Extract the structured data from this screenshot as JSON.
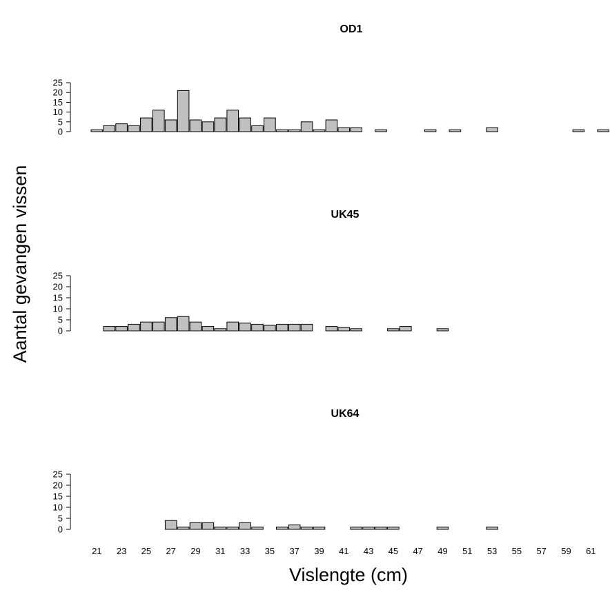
{
  "chart_data": {
    "type": "bar",
    "ylabel": "Aantal gevangen vissen",
    "xlabel": "Vislengte (cm)",
    "ylim": [
      0,
      25
    ],
    "yticks": [
      0,
      5,
      10,
      15,
      20,
      25
    ],
    "x": [
      21,
      22,
      23,
      24,
      25,
      26,
      27,
      28,
      29,
      30,
      31,
      32,
      33,
      34,
      35,
      36,
      37,
      38,
      39,
      40,
      41,
      42,
      43,
      44,
      45,
      46,
      47,
      48,
      49,
      50,
      51,
      52,
      53,
      54,
      55,
      56,
      57,
      58,
      59,
      60,
      61,
      62
    ],
    "xtick_labels": [
      "21",
      "23",
      "25",
      "27",
      "29",
      "31",
      "33",
      "35",
      "37",
      "39",
      "41",
      "43",
      "45",
      "47",
      "49",
      "51",
      "53",
      "55",
      "57",
      "59",
      "61"
    ],
    "bar_color": "#c0c0c0",
    "panels": [
      {
        "title": "OD1",
        "values": [
          1,
          3,
          4,
          3,
          7,
          11,
          6,
          21,
          6,
          5,
          7,
          11,
          7,
          3,
          7,
          1,
          1,
          5,
          1,
          6,
          2,
          2,
          0,
          1,
          0,
          0,
          0,
          1,
          0,
          1,
          0,
          0,
          2,
          0,
          0,
          0,
          0,
          0,
          0,
          1,
          0,
          1
        ]
      },
      {
        "title": "UK45",
        "values": [
          0,
          2,
          2,
          3,
          4,
          4,
          6,
          6.5,
          4,
          2,
          1,
          4,
          3.5,
          3,
          2.5,
          3,
          3,
          3,
          0,
          2,
          1.5,
          1,
          0,
          0,
          1,
          2,
          0,
          0,
          1,
          0,
          0,
          0,
          0,
          0,
          0,
          0,
          0,
          0,
          0,
          0,
          0,
          0
        ]
      },
      {
        "title": "UK64",
        "values": [
          0,
          0,
          0,
          0,
          0,
          0,
          4,
          1,
          3,
          3,
          1,
          1,
          3,
          1,
          0,
          1,
          2,
          1,
          1,
          0,
          0,
          1,
          1,
          1,
          1,
          0,
          0,
          0,
          1,
          0,
          0,
          0,
          1,
          0,
          0,
          0,
          0,
          0,
          0,
          0,
          0,
          0
        ]
      }
    ]
  }
}
